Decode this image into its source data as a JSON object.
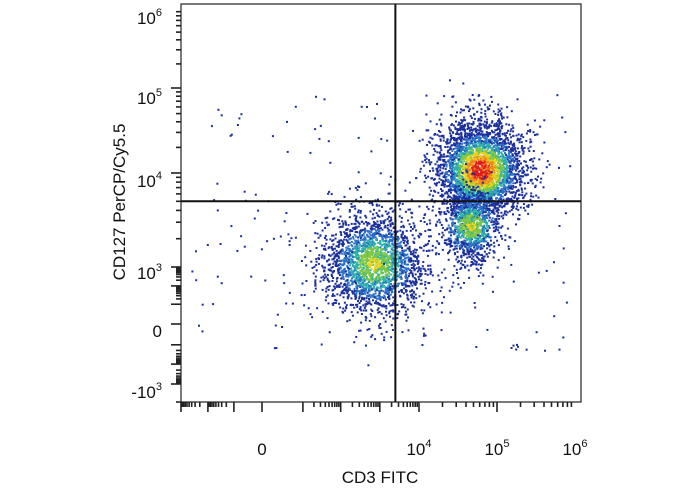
{
  "chart_data": {
    "type": "scatter",
    "title": "",
    "xlabel": "CD3 FITC",
    "ylabel": "CD127 PerCP/Cy5.5",
    "x_scale": "biexponential",
    "y_scale": "biexponential",
    "x_ticks": [
      {
        "base": "0",
        "exp": ""
      },
      {
        "base": "10",
        "exp": "4"
      },
      {
        "base": "10",
        "exp": "5"
      },
      {
        "base": "10",
        "exp": "6"
      }
    ],
    "y_ticks": [
      {
        "base": "10",
        "exp": "6"
      },
      {
        "base": "10",
        "exp": "5"
      },
      {
        "base": "10",
        "exp": "4"
      },
      {
        "base": "10",
        "exp": "3"
      },
      {
        "base": "0",
        "exp": ""
      },
      {
        "base": "-10",
        "exp": "3"
      }
    ],
    "quadrant_gate": {
      "x": 2500,
      "y": 5000
    },
    "populations": [
      {
        "name": "",
        "x_center": 700,
        "y_center": 1100,
        "events": 2200,
        "peak_density": "medium"
      },
      {
        "name": "",
        "x_center": 60000,
        "y_center": 11000,
        "events": 3200,
        "peak_density": "high"
      },
      {
        "name": "",
        "x_center": 45000,
        "y_center": 2800,
        "events": 900,
        "peak_density": "medium"
      }
    ],
    "color_scale": [
      "#1b2f9c",
      "#2a73c8",
      "#2fb3a8",
      "#7ec843",
      "#e8d21d",
      "#f0861c",
      "#e01b1b"
    ],
    "grid": false,
    "legend": "none"
  }
}
